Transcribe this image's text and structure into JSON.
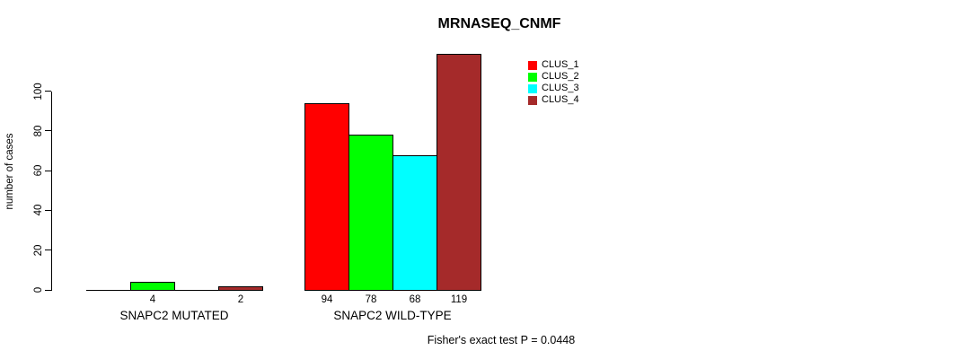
{
  "title": "MRNASEQ_CNMF",
  "chart_data": {
    "type": "bar",
    "title": "MRNASEQ_CNMF",
    "xlabel": "",
    "ylabel": "number of cases",
    "ylim": [
      0,
      119
    ],
    "yticks": [
      0,
      20,
      40,
      60,
      80,
      100
    ],
    "grid": false,
    "legend_position": "top-right",
    "categories": [
      "SNAPC2 MUTATED",
      "SNAPC2 WILD-TYPE"
    ],
    "series": [
      {
        "name": "CLUS_1",
        "color": "#FF0000",
        "values": [
          0,
          94
        ]
      },
      {
        "name": "CLUS_2",
        "color": "#00FF00",
        "values": [
          4,
          78
        ]
      },
      {
        "name": "CLUS_3",
        "color": "#00FFFF",
        "values": [
          0,
          68
        ]
      },
      {
        "name": "CLUS_4",
        "color": "#A52A2A",
        "values": [
          2,
          119
        ]
      }
    ],
    "value_labels_shown": true,
    "zero_value_labels_hidden": true,
    "annotation": "Fisher's exact test P = 0.0448",
    "axis_color": "#000000",
    "background_color": "#FFFFFF"
  }
}
